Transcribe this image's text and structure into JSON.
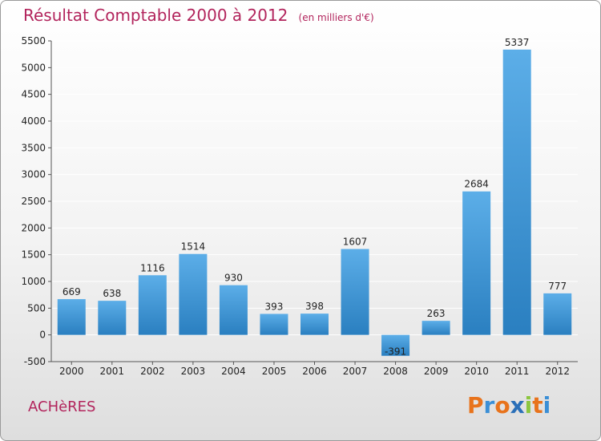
{
  "header": {
    "title": "Résultat Comptable 2000 à 2012",
    "subtitle": "(en milliers d'€)"
  },
  "footer": {
    "town": "ACHèRES",
    "logo_letters": [
      "P",
      "r",
      "o",
      "x",
      "i",
      "t",
      "i"
    ]
  },
  "colors": {
    "title": "#b2245c",
    "bar_light": "#5caee8",
    "bar_dark": "#2a7fc0",
    "grid": "#ffffff",
    "axis": "#555555",
    "logo": [
      "#e8731c",
      "#3b8fd6",
      "#e8731c",
      "#2a6fb8",
      "#8cc63f",
      "#e8731c",
      "#3b8fd6"
    ]
  },
  "chart_data": {
    "type": "bar",
    "title": "Résultat Comptable 2000 à 2012",
    "subtitle": "(en milliers d'€)",
    "xlabel": "",
    "ylabel": "",
    "categories": [
      "2000",
      "2001",
      "2002",
      "2003",
      "2004",
      "2005",
      "2006",
      "2007",
      "2008",
      "2009",
      "2010",
      "2011",
      "2012"
    ],
    "values": [
      669,
      638,
      1116,
      1514,
      930,
      393,
      398,
      1607,
      -391,
      263,
      2684,
      5337,
      777
    ],
    "data_labels": [
      "669",
      "638",
      "1116",
      "1514",
      "930",
      "393",
      "398",
      "1607",
      "-391",
      "263",
      "2684",
      "5337",
      "777"
    ],
    "ylim": [
      -500,
      5500
    ],
    "yticks": [
      -500,
      0,
      500,
      1000,
      1500,
      2000,
      2500,
      3000,
      3500,
      4000,
      4500,
      5000,
      5500
    ],
    "grid": true
  }
}
